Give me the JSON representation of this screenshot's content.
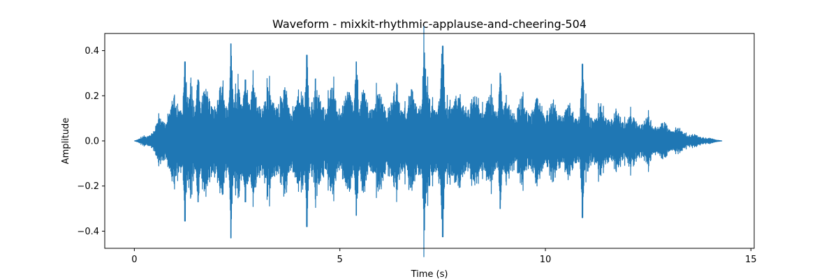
{
  "chart_data": {
    "type": "line",
    "title": "Waveform - mixkit-rhythmic-applause-and-cheering-504",
    "xlabel": "Time (s)",
    "ylabel": "Amplitude",
    "xlim": [
      -0.72,
      15.08
    ],
    "ylim": [
      -0.476,
      0.476
    ],
    "x_ticks": [
      0,
      5,
      10,
      15
    ],
    "y_ticks": [
      -0.4,
      -0.2,
      0.0,
      0.2,
      0.4
    ],
    "x_tick_labels": [
      "0",
      "5",
      "10",
      "15"
    ],
    "y_tick_labels": [
      "−0.4",
      "−0.2",
      "0.0",
      "0.2",
      "0.4"
    ],
    "grid": false,
    "color": "#1f77b4",
    "duration_s": 14.3,
    "envelope": {
      "description_points": [
        {
          "t": 0.0,
          "amp": 0.0
        },
        {
          "t": 0.3,
          "amp": 0.02
        },
        {
          "t": 0.7,
          "amp": 0.1
        },
        {
          "t": 1.0,
          "amp": 0.17
        },
        {
          "t": 2.0,
          "amp": 0.2
        },
        {
          "t": 5.0,
          "amp": 0.19
        },
        {
          "t": 8.0,
          "amp": 0.18
        },
        {
          "t": 10.0,
          "amp": 0.15
        },
        {
          "t": 11.5,
          "amp": 0.12
        },
        {
          "t": 12.5,
          "amp": 0.09
        },
        {
          "t": 13.2,
          "amp": 0.05
        },
        {
          "t": 13.7,
          "amp": 0.02
        },
        {
          "t": 14.3,
          "amp": 0.0
        }
      ],
      "peaks": [
        {
          "t": 1.23,
          "max": 0.35,
          "min": -0.355
        },
        {
          "t": 1.55,
          "max": 0.27,
          "min": -0.27
        },
        {
          "t": 2.35,
          "max": 0.43,
          "min": -0.43
        },
        {
          "t": 2.7,
          "max": 0.27,
          "min": -0.27
        },
        {
          "t": 4.2,
          "max": 0.38,
          "min": -0.38
        },
        {
          "t": 5.4,
          "max": 0.35,
          "min": -0.33
        },
        {
          "t": 7.05,
          "max": 0.39,
          "min": -0.395
        },
        {
          "t": 7.5,
          "max": 0.42,
          "min": -0.425
        },
        {
          "t": 8.9,
          "max": 0.3,
          "min": -0.3
        },
        {
          "t": 10.9,
          "max": 0.34,
          "min": -0.34
        }
      ]
    }
  }
}
